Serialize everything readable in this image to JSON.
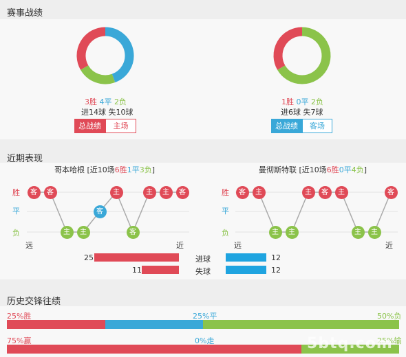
{
  "section1": {
    "title": "赛事战绩",
    "left": {
      "wins": "3胜",
      "draws": "4平",
      "losses": "2负",
      "goals": "进14球 失10球",
      "btn_total": "总战绩",
      "btn_venue": "主场",
      "donut": [
        3,
        4,
        2
      ]
    },
    "right": {
      "wins": "1胜",
      "draws": "0平",
      "losses": "2负",
      "goals": "进6球 失7球",
      "btn_total": "总战绩",
      "btn_venue": "客场",
      "donut": [
        1,
        0,
        2
      ]
    }
  },
  "section2": {
    "title": "近期表现",
    "left": {
      "team": "哥本哈根",
      "summary_prefix": " [近10场",
      "wins": "6胜",
      "draws": "1平",
      "losses": "3负",
      "summary_suffix": "]",
      "y_labels": [
        "胜",
        "平",
        "负"
      ],
      "x_far": "远",
      "x_near": "近",
      "results": [
        {
          "r": "W",
          "label": "客"
        },
        {
          "r": "W",
          "label": "客"
        },
        {
          "r": "L",
          "label": "主"
        },
        {
          "r": "L",
          "label": "主"
        },
        {
          "r": "D",
          "label": "客"
        },
        {
          "r": "W",
          "label": "主"
        },
        {
          "r": "L",
          "label": "客"
        },
        {
          "r": "W",
          "label": "主"
        },
        {
          "r": "W",
          "label": "主"
        },
        {
          "r": "W",
          "label": "客"
        }
      ],
      "goals_for": 25,
      "goals_against": 11
    },
    "right": {
      "team": "曼彻斯特联",
      "summary_prefix": " [近10场",
      "wins": "6胜",
      "draws": "0平",
      "losses": "4负",
      "summary_suffix": "]",
      "y_labels": [
        "胜",
        "平",
        "负"
      ],
      "x_far": "远",
      "x_near": "近",
      "results": [
        {
          "r": "W",
          "label": "客"
        },
        {
          "r": "W",
          "label": "主"
        },
        {
          "r": "L",
          "label": "主"
        },
        {
          "r": "L",
          "label": "主"
        },
        {
          "r": "W",
          "label": "主"
        },
        {
          "r": "W",
          "label": "客"
        },
        {
          "r": "W",
          "label": "主"
        },
        {
          "r": "L",
          "label": "主"
        },
        {
          "r": "L",
          "label": "主"
        },
        {
          "r": "W",
          "label": "客"
        }
      ],
      "goals_for": 12,
      "goals_against": 12
    },
    "goals_for_label": "进球",
    "goals_against_label": "失球",
    "goals_scale_max": 25
  },
  "section3": {
    "title": "历史交锋往绩",
    "row1": {
      "left": "25%胜",
      "mid": "25%平",
      "right": "50%负",
      "values": [
        25,
        25,
        50
      ]
    },
    "row2": {
      "left": "75%赢",
      "mid": "0%走",
      "right": "25%输",
      "values": [
        75,
        0,
        25
      ]
    }
  },
  "watermark": "5btq.com",
  "colors": {
    "win": "#e04a57",
    "draw": "#3aa8d8",
    "loss": "#8bc34a",
    "against": "#1fa4e0"
  }
}
